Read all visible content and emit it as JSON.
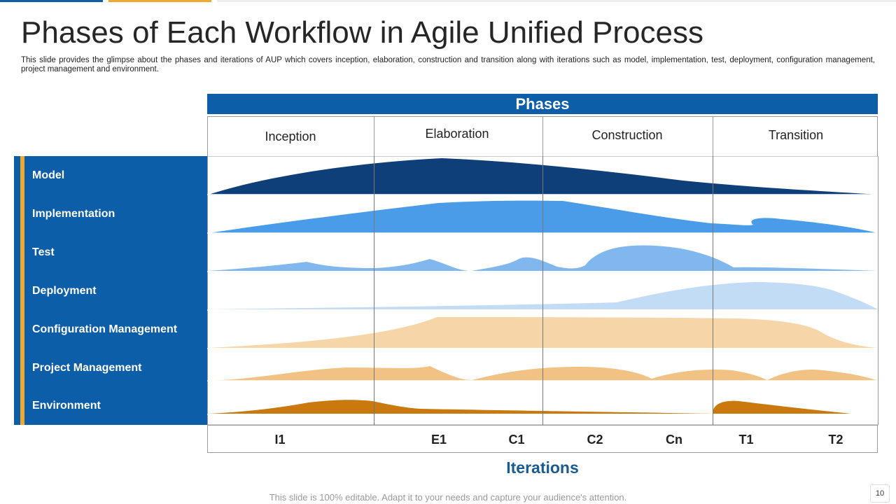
{
  "title": "Phases of Each Workflow in Agile Unified Process",
  "subtitle": "This slide provides the glimpse about the phases and iterations of AUP which covers inception, elaboration, construction and transition along with iterations such as model, implementation, test, deployment, configuration management, project management and environment.",
  "phases_header": "Phases",
  "phases": [
    "Inception",
    "Elaboration",
    "Construction",
    "Transition"
  ],
  "workflows": [
    "Model",
    "Implementation",
    "Test",
    "Deployment",
    "Configuration Management",
    "Project Management",
    "Environment"
  ],
  "iterations_header": "Iterations",
  "iterations": [
    "I1",
    "E1",
    "C1",
    "C2",
    "Cn",
    "T1",
    "T2"
  ],
  "footer": "This slide is 100% editable. Adapt it to your needs and capture your audience's attention.",
  "page_number": "10",
  "colors": {
    "primary_blue": "#0d5ea8",
    "accent_orange": "#f0a830",
    "model": "#0e3f78",
    "implementation": "#4a9ce8",
    "test": "#7fb7ee",
    "deployment": "#c3dcf6",
    "configuration": "#f6d6a8",
    "project": "#f1c283",
    "environment": "#c9790e"
  }
}
